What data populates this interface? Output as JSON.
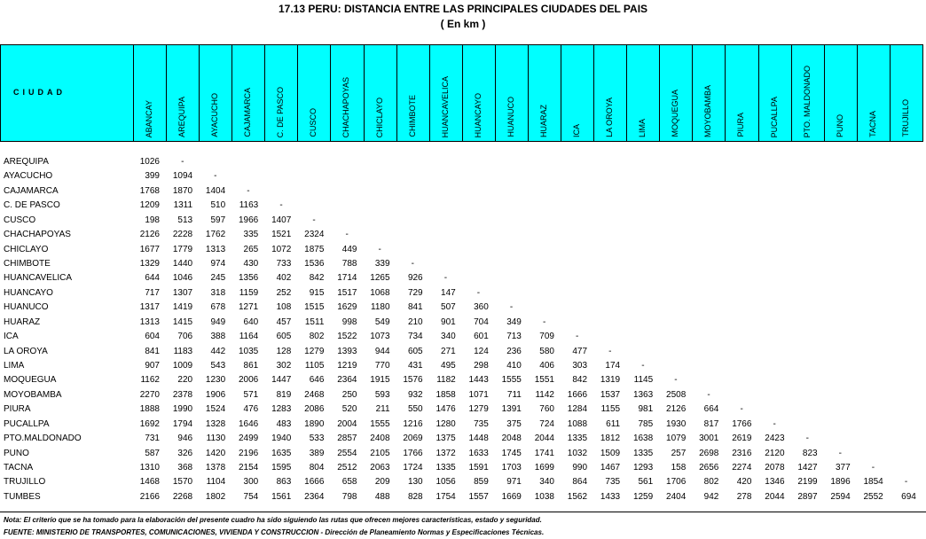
{
  "title": "17.13  PERU: DISTANCIA ENTRE LAS PRINCIPALES CIUDADES DEL PAIS",
  "subtitle": "( En km )",
  "row_header": "CIUDAD",
  "columns": [
    "ABANCAY",
    "AREQUIPA",
    "AYACUCHO",
    "CAJAMARCA",
    "C. DE PASCO",
    "CUSCO",
    "CHACHAPOYAS",
    "CHICLAYO",
    "CHIMBOTE",
    "HUANCAVELICA",
    "HUANCAYO",
    "HUANUCO",
    "HUARAZ",
    "ICA",
    "LA OROYA",
    "LIMA",
    "MOQUEGUA",
    "MOYOBAMBA",
    "PIURA",
    "PUCALLPA",
    "PTO. MALDONADO",
    "PUNO",
    "TACNA",
    "TRUJILLO"
  ],
  "rows": [
    {
      "city": "AREQUIPA",
      "values": [
        "1026",
        "-"
      ]
    },
    {
      "city": "AYACUCHO",
      "values": [
        "399",
        "1094",
        "-"
      ]
    },
    {
      "city": "CAJAMARCA",
      "values": [
        "1768",
        "1870",
        "1404",
        "-"
      ]
    },
    {
      "city": "C. DE PASCO",
      "values": [
        "1209",
        "1311",
        "510",
        "1163",
        "-"
      ]
    },
    {
      "city": "CUSCO",
      "values": [
        "198",
        "513",
        "597",
        "1966",
        "1407",
        "-"
      ]
    },
    {
      "city": "CHACHAPOYAS",
      "values": [
        "2126",
        "2228",
        "1762",
        "335",
        "1521",
        "2324",
        "-"
      ]
    },
    {
      "city": "CHICLAYO",
      "values": [
        "1677",
        "1779",
        "1313",
        "265",
        "1072",
        "1875",
        "449",
        "-"
      ]
    },
    {
      "city": "CHIMBOTE",
      "values": [
        "1329",
        "1440",
        "974",
        "430",
        "733",
        "1536",
        "788",
        "339",
        "-"
      ]
    },
    {
      "city": "HUANCAVELICA",
      "values": [
        "644",
        "1046",
        "245",
        "1356",
        "402",
        "842",
        "1714",
        "1265",
        "926",
        "-"
      ]
    },
    {
      "city": "HUANCAYO",
      "values": [
        "717",
        "1307",
        "318",
        "1159",
        "252",
        "915",
        "1517",
        "1068",
        "729",
        "147",
        "-"
      ]
    },
    {
      "city": "HUANUCO",
      "values": [
        "1317",
        "1419",
        "678",
        "1271",
        "108",
        "1515",
        "1629",
        "1180",
        "841",
        "507",
        "360",
        "-"
      ]
    },
    {
      "city": "HUARAZ",
      "values": [
        "1313",
        "1415",
        "949",
        "640",
        "457",
        "1511",
        "998",
        "549",
        "210",
        "901",
        "704",
        "349",
        "-"
      ]
    },
    {
      "city": "ICA",
      "values": [
        "604",
        "706",
        "388",
        "1164",
        "605",
        "802",
        "1522",
        "1073",
        "734",
        "340",
        "601",
        "713",
        "709",
        "-"
      ]
    },
    {
      "city": "LA OROYA",
      "values": [
        "841",
        "1183",
        "442",
        "1035",
        "128",
        "1279",
        "1393",
        "944",
        "605",
        "271",
        "124",
        "236",
        "580",
        "477",
        "-"
      ]
    },
    {
      "city": "LIMA",
      "values": [
        "907",
        "1009",
        "543",
        "861",
        "302",
        "1105",
        "1219",
        "770",
        "431",
        "495",
        "298",
        "410",
        "406",
        "303",
        "174",
        "-"
      ]
    },
    {
      "city": "MOQUEGUA",
      "values": [
        "1162",
        "220",
        "1230",
        "2006",
        "1447",
        "646",
        "2364",
        "1915",
        "1576",
        "1182",
        "1443",
        "1555",
        "1551",
        "842",
        "1319",
        "1145",
        "-"
      ]
    },
    {
      "city": "MOYOBAMBA",
      "values": [
        "2270",
        "2378",
        "1906",
        "571",
        "819",
        "2468",
        "250",
        "593",
        "932",
        "1858",
        "1071",
        "711",
        "1142",
        "1666",
        "1537",
        "1363",
        "2508",
        "-"
      ]
    },
    {
      "city": "PIURA",
      "values": [
        "1888",
        "1990",
        "1524",
        "476",
        "1283",
        "2086",
        "520",
        "211",
        "550",
        "1476",
        "1279",
        "1391",
        "760",
        "1284",
        "1155",
        "981",
        "2126",
        "664",
        "-"
      ]
    },
    {
      "city": "PUCALLPA",
      "values": [
        "1692",
        "1794",
        "1328",
        "1646",
        "483",
        "1890",
        "2004",
        "1555",
        "1216",
        "1280",
        "735",
        "375",
        "724",
        "1088",
        "611",
        "785",
        "1930",
        "817",
        "1766",
        "-"
      ]
    },
    {
      "city": "PTO.MALDONADO",
      "values": [
        "731",
        "946",
        "1130",
        "2499",
        "1940",
        "533",
        "2857",
        "2408",
        "2069",
        "1375",
        "1448",
        "2048",
        "2044",
        "1335",
        "1812",
        "1638",
        "1079",
        "3001",
        "2619",
        "2423",
        "-"
      ]
    },
    {
      "city": "PUNO",
      "values": [
        "587",
        "326",
        "1420",
        "2196",
        "1635",
        "389",
        "2554",
        "2105",
        "1766",
        "1372",
        "1633",
        "1745",
        "1741",
        "1032",
        "1509",
        "1335",
        "257",
        "2698",
        "2316",
        "2120",
        "823",
        "-"
      ]
    },
    {
      "city": "TACNA",
      "values": [
        "1310",
        "368",
        "1378",
        "2154",
        "1595",
        "804",
        "2512",
        "2063",
        "1724",
        "1335",
        "1591",
        "1703",
        "1699",
        "990",
        "1467",
        "1293",
        "158",
        "2656",
        "2274",
        "2078",
        "1427",
        "377",
        "-"
      ]
    },
    {
      "city": "TRUJILLO",
      "values": [
        "1468",
        "1570",
        "1104",
        "300",
        "863",
        "1666",
        "658",
        "209",
        "130",
        "1056",
        "859",
        "971",
        "340",
        "864",
        "735",
        "561",
        "1706",
        "802",
        "420",
        "1346",
        "2199",
        "1896",
        "1854",
        "-"
      ]
    },
    {
      "city": "TUMBES",
      "values": [
        "2166",
        "2268",
        "1802",
        "754",
        "1561",
        "2364",
        "798",
        "488",
        "828",
        "1754",
        "1557",
        "1669",
        "1038",
        "1562",
        "1433",
        "1259",
        "2404",
        "942",
        "278",
        "2044",
        "2897",
        "2594",
        "2552",
        "694"
      ]
    }
  ],
  "note": "Nota: El criterio que se ha tomado para la elaboración del presente cuadro ha sido siguiendo las rutas que ofrecen mejores características, estado y seguridad.",
  "source": "FUENTE: MINISTERIO DE TRANSPORTES, COMUNICACIONES, VIVIENDA Y CONSTRUCCION - Dirección de Planeamiento Normas y Especificaciones Técnicas.",
  "colors": {
    "header_bg": "#00ffff"
  }
}
